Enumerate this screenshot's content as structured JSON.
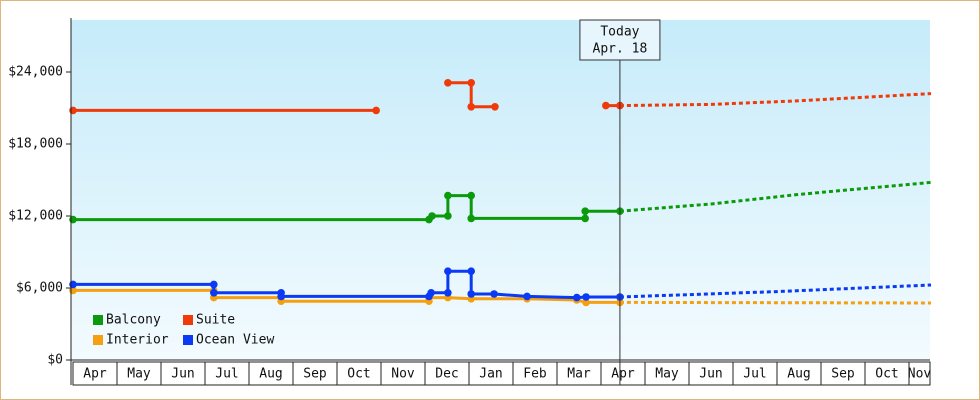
{
  "chart_data": {
    "type": "line",
    "categories": [
      "Apr",
      "May",
      "Jun",
      "Jul",
      "Aug",
      "Sep",
      "Oct",
      "Nov",
      "Dec",
      "Jan",
      "Feb",
      "Mar",
      "Apr",
      "May",
      "Jun",
      "Jul",
      "Aug",
      "Sep",
      "Oct",
      "Nov"
    ],
    "xlim": [
      0,
      19.5
    ],
    "ylim": [
      0,
      28333
    ],
    "yticks": [
      {
        "value": 0,
        "label": "$0"
      },
      {
        "value": 6000,
        "label": "$6,000"
      },
      {
        "value": 12000,
        "label": "$12,000"
      },
      {
        "value": 18000,
        "label": "$18,000"
      },
      {
        "value": 24000,
        "label": "$24,000"
      }
    ],
    "annotation": {
      "x": 12.43,
      "label": "Today",
      "sublabel": "Apr. 18"
    },
    "series": [
      {
        "name": "Balcony",
        "color": "#0b9a0b",
        "x": [
          0,
          8.09,
          8.16,
          8.52,
          8.52,
          9.05,
          9.05,
          11.64,
          11.64,
          12.43
        ],
        "values": [
          11700,
          11700,
          12000,
          12000,
          13700,
          13700,
          11800,
          11800,
          12400,
          12400
        ],
        "forecast_x": [
          12.43,
          14.5,
          16.5,
          19.5
        ],
        "forecast_values": [
          12400,
          13000,
          13800,
          14800
        ]
      },
      {
        "name": "Suite",
        "color": "#f03a0a",
        "x": [
          0,
          6.89,
          null,
          8.52,
          9.05,
          9.05,
          9.59,
          null,
          12.11,
          12.43
        ],
        "values": [
          20800,
          20800,
          null,
          23100,
          23100,
          21100,
          21100,
          null,
          21200,
          21200
        ],
        "forecast_x": [
          12.43,
          14.5,
          16.5,
          19.5
        ],
        "forecast_values": [
          21200,
          21300,
          21600,
          22200
        ]
      },
      {
        "name": "Interior",
        "color": "#f5a010",
        "x": [
          0,
          3.2,
          3.2,
          4.73,
          4.73,
          8.09,
          8.09,
          8.52,
          9.05,
          10.32,
          11.45,
          11.66,
          12.43
        ],
        "values": [
          5800,
          5800,
          5200,
          5200,
          4900,
          4900,
          5200,
          5200,
          5100,
          5100,
          5000,
          4800,
          4800
        ],
        "forecast_x": [
          12.43,
          19.5
        ],
        "forecast_values": [
          4800,
          4750
        ]
      },
      {
        "name": "Ocean View",
        "color": "#0a3af5",
        "x": [
          0,
          3.2,
          3.2,
          4.73,
          4.73,
          8.09,
          8.14,
          8.52,
          8.52,
          9.05,
          9.05,
          9.57,
          10.32,
          11.45,
          11.66,
          12.43
        ],
        "values": [
          6300,
          6300,
          5600,
          5600,
          5300,
          5300,
          5600,
          5600,
          7400,
          7400,
          5500,
          5500,
          5300,
          5200,
          5250,
          5250
        ],
        "forecast_x": [
          12.43,
          16,
          19.5
        ],
        "forecast_values": [
          5250,
          5700,
          6250
        ]
      }
    ]
  }
}
